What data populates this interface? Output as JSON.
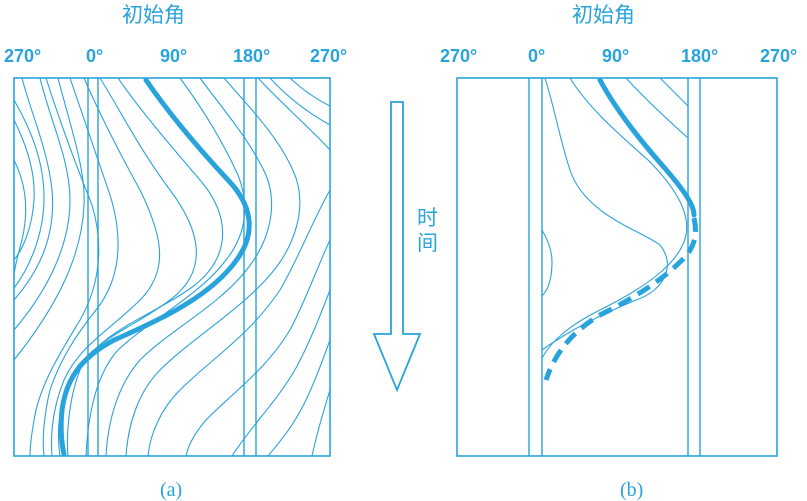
{
  "panel_a": {
    "title": "初始角",
    "ticks": [
      "270°",
      "0°",
      "90°",
      "180°",
      "270°"
    ],
    "caption": "(a)"
  },
  "panel_b": {
    "title": "初始角",
    "ticks": [
      "270°",
      "0°",
      "90°",
      "180°",
      "270°"
    ],
    "caption": "(b)"
  },
  "time_axis": {
    "label_1": "时",
    "label_2": "间"
  },
  "colors": {
    "line": "#29a3dc"
  }
}
